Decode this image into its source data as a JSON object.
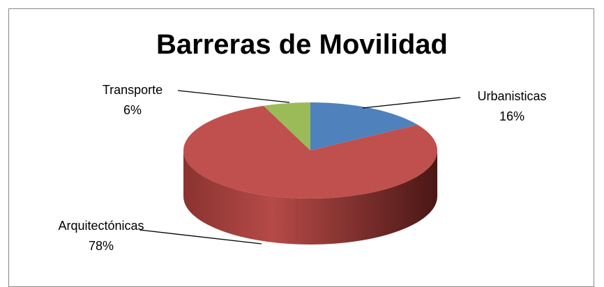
{
  "chart_data": {
    "type": "pie",
    "title": "Barreras de Movilidad",
    "categories": [
      "Urbanisticas",
      "Arquitectónicas",
      "Transporte"
    ],
    "values": [
      16,
      78,
      6
    ],
    "value_labels": [
      "16%",
      "78%",
      "6%"
    ],
    "colors": [
      "#4f81bd",
      "#c0504d",
      "#9bbb59"
    ]
  }
}
